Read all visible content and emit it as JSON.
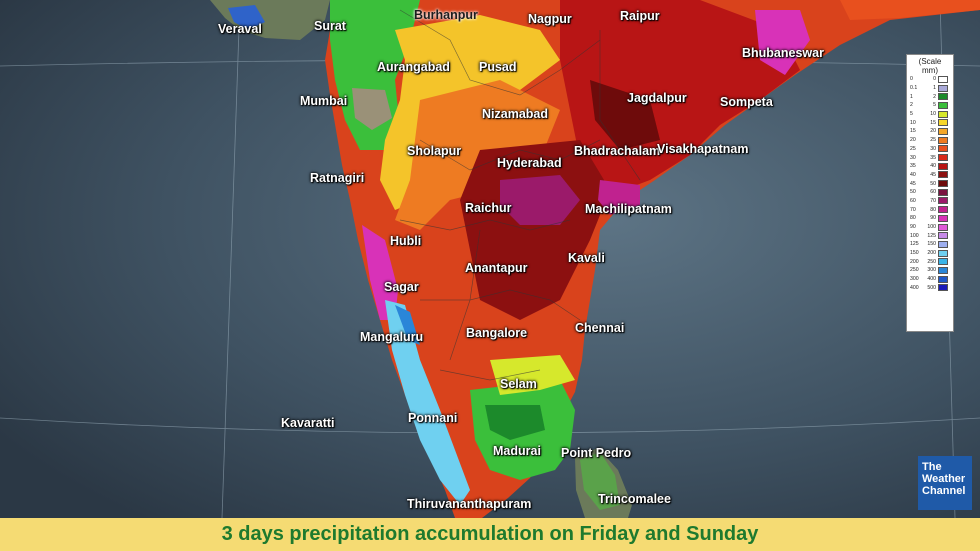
{
  "map": {
    "cities": [
      {
        "id": "veraval",
        "name": "Veraval"
      },
      {
        "id": "surat",
        "name": "Surat"
      },
      {
        "id": "burhanpur",
        "name": "Burhanpur"
      },
      {
        "id": "nagpur",
        "name": "Nagpur"
      },
      {
        "id": "raipur",
        "name": "Raipur"
      },
      {
        "id": "bhubaneswar",
        "name": "Bhubaneswar"
      },
      {
        "id": "aurangabad",
        "name": "Aurangabad"
      },
      {
        "id": "pusad",
        "name": "Pusad"
      },
      {
        "id": "mumbai",
        "name": "Mumbai"
      },
      {
        "id": "jagdalpur",
        "name": "Jagdalpur"
      },
      {
        "id": "sompeta",
        "name": "Sompeta"
      },
      {
        "id": "nizamabad",
        "name": "Nizamabad"
      },
      {
        "id": "sholapur",
        "name": "Sholapur"
      },
      {
        "id": "bhadrachalam",
        "name": "Bhadrachalam"
      },
      {
        "id": "visakhapatnam",
        "name": "Visakhapatnam"
      },
      {
        "id": "hyderabad",
        "name": "Hyderabad"
      },
      {
        "id": "ratnagiri",
        "name": "Ratnagiri"
      },
      {
        "id": "raichur",
        "name": "Raichur"
      },
      {
        "id": "machilipatnam",
        "name": "Machilipatnam"
      },
      {
        "id": "hubli",
        "name": "Hubli"
      },
      {
        "id": "kavali",
        "name": "Kavali"
      },
      {
        "id": "anantapur",
        "name": "Anantapur"
      },
      {
        "id": "sagar",
        "name": "Sagar"
      },
      {
        "id": "chennai",
        "name": "Chennai"
      },
      {
        "id": "bangalore",
        "name": "Bangalore"
      },
      {
        "id": "mangaluru",
        "name": "Mangaluru"
      },
      {
        "id": "selam",
        "name": "Selam"
      },
      {
        "id": "kavaratti",
        "name": "Kavaratti"
      },
      {
        "id": "ponnani",
        "name": "Ponnani"
      },
      {
        "id": "madurai",
        "name": "Madurai"
      },
      {
        "id": "point_pedro",
        "name": "Point Pedro"
      },
      {
        "id": "thiruvananthapuram",
        "name": "Thiruvananthapuram"
      },
      {
        "id": "trincomalee",
        "name": "Trincomalee"
      }
    ]
  },
  "legend": {
    "title": "(Scale",
    "unit": "mm)",
    "rows": [
      {
        "lo": "0",
        "hi": "0",
        "color": "#ffffff"
      },
      {
        "lo": "0.1",
        "hi": "1",
        "color": "#a9a9d8"
      },
      {
        "lo": "1",
        "hi": "2",
        "color": "#1c8a2b"
      },
      {
        "lo": "2",
        "hi": "5",
        "color": "#3bbf3b"
      },
      {
        "lo": "5",
        "hi": "10",
        "color": "#d6e82c"
      },
      {
        "lo": "10",
        "hi": "15",
        "color": "#f6d62a"
      },
      {
        "lo": "15",
        "hi": "20",
        "color": "#f4a72a"
      },
      {
        "lo": "20",
        "hi": "25",
        "color": "#ee7b22"
      },
      {
        "lo": "25",
        "hi": "30",
        "color": "#e8501e"
      },
      {
        "lo": "30",
        "hi": "35",
        "color": "#d82a1a"
      },
      {
        "lo": "35",
        "hi": "40",
        "color": "#b81515"
      },
      {
        "lo": "40",
        "hi": "45",
        "color": "#8c1010"
      },
      {
        "lo": "45",
        "hi": "50",
        "color": "#6e0b0b"
      },
      {
        "lo": "50",
        "hi": "60",
        "color": "#7a1240"
      },
      {
        "lo": "60",
        "hi": "70",
        "color": "#9b1a6a"
      },
      {
        "lo": "70",
        "hi": "80",
        "color": "#c0228f"
      },
      {
        "lo": "80",
        "hi": "90",
        "color": "#d832b8"
      },
      {
        "lo": "90",
        "hi": "100",
        "color": "#e05ad8"
      },
      {
        "lo": "100",
        "hi": "125",
        "color": "#c78ae8"
      },
      {
        "lo": "125",
        "hi": "150",
        "color": "#9fb0f0"
      },
      {
        "lo": "150",
        "hi": "200",
        "color": "#6fd0f0"
      },
      {
        "lo": "200",
        "hi": "250",
        "color": "#3ab4e8"
      },
      {
        "lo": "250",
        "hi": "300",
        "color": "#2a86d8"
      },
      {
        "lo": "300",
        "hi": "400",
        "color": "#1f58c8"
      },
      {
        "lo": "400",
        "hi": "500",
        "color": "#1a1ab8"
      }
    ]
  },
  "logo": {
    "line1": "The",
    "line2": "Weather",
    "line3": "Channel"
  },
  "caption": "3 days precipitation accumulation on Friday and Sunday"
}
